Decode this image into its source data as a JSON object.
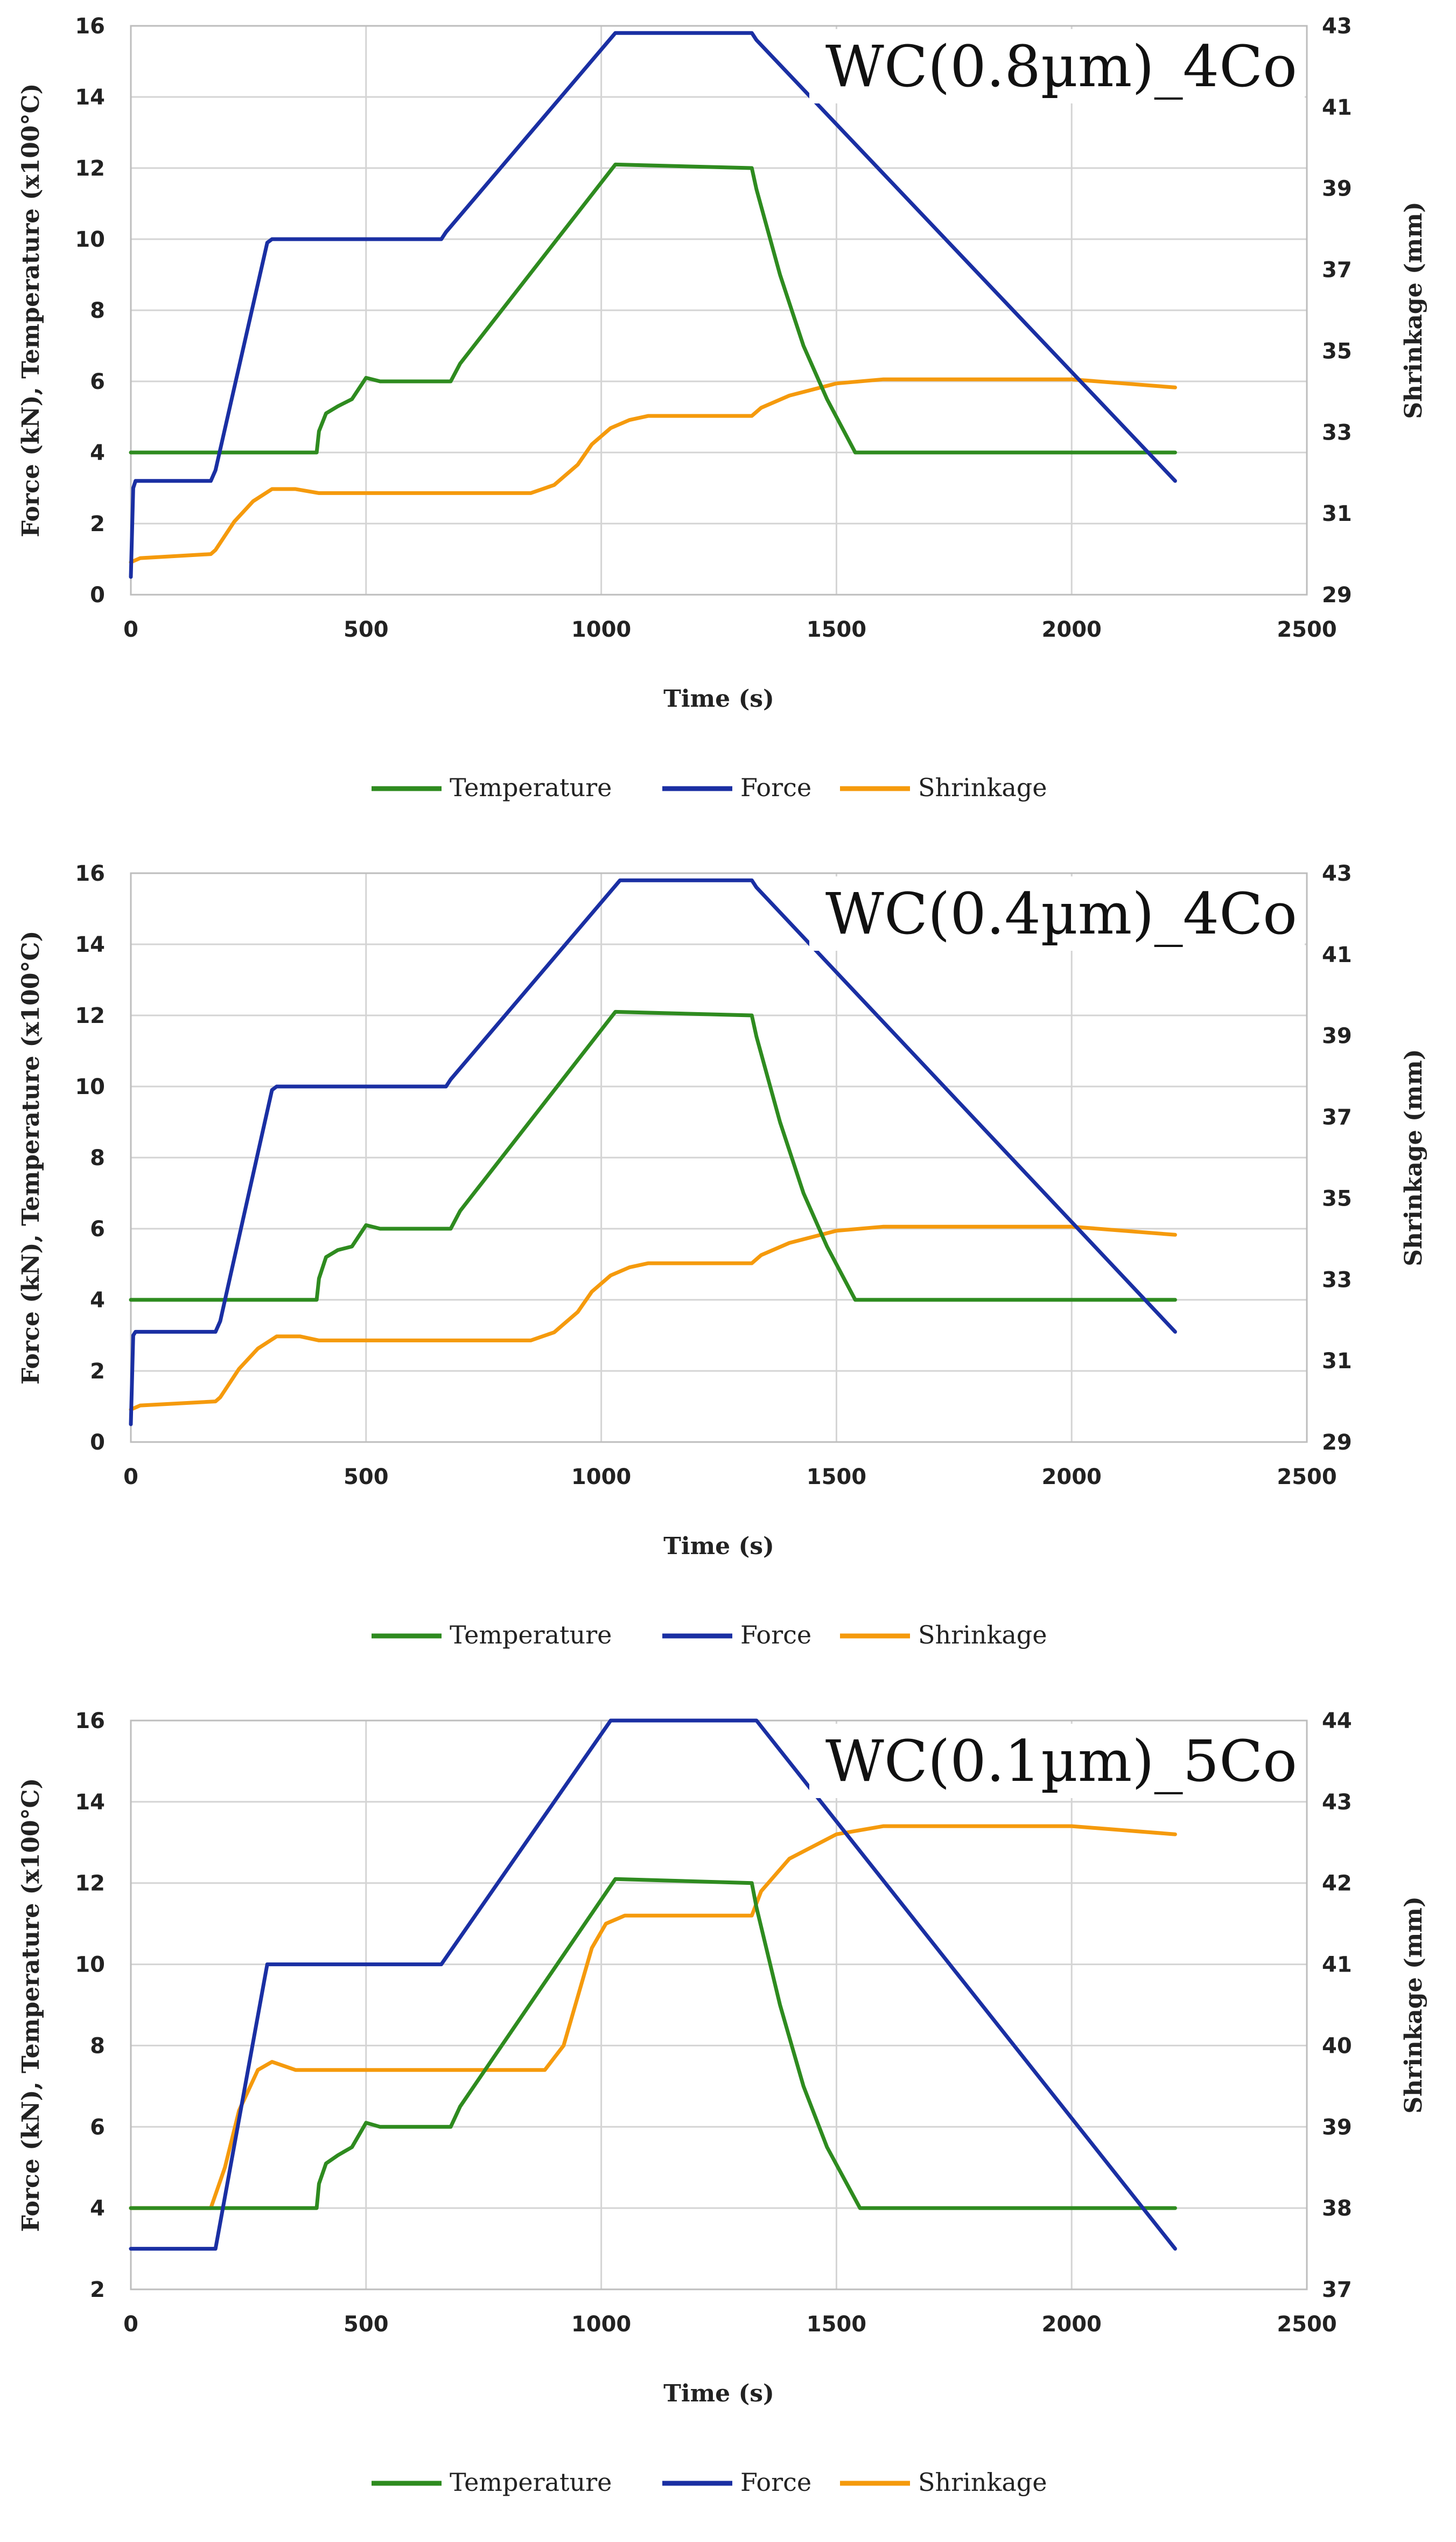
{
  "colors": {
    "temperature": "#2e8b1f",
    "force": "#1a2fa3",
    "shrinkage": "#f59a0c",
    "grid": "#d4d4d4"
  },
  "legend": [
    "Temperature",
    "Force",
    "Shrinkage"
  ],
  "chart_data": [
    {
      "type": "line",
      "title": "WC(0.8µm)_4Co",
      "xlabel": "Time (s)",
      "ylabel": "Force (kN), Temperature (x100°C)",
      "y2label": "Shrinkage (mm)",
      "xlim": [
        0,
        2500
      ],
      "xticks": [
        0,
        500,
        1000,
        1500,
        2000,
        2500
      ],
      "ylim": [
        0,
        16
      ],
      "yticks": [
        0,
        2,
        4,
        6,
        8,
        10,
        12,
        14,
        16
      ],
      "y2lim": [
        29,
        43
      ],
      "y2ticks": [
        29,
        31,
        33,
        35,
        37,
        39,
        41,
        43
      ],
      "grid": true,
      "legend_position": "bottom",
      "series": [
        {
          "name": "Temperature",
          "axis": "left",
          "x": [
            0,
            395,
            400,
            415,
            440,
            470,
            500,
            530,
            560,
            680,
            700,
            1030,
            1320,
            1330,
            1380,
            1430,
            1480,
            1540,
            2220
          ],
          "y": [
            4.0,
            4.0,
            4.6,
            5.1,
            5.3,
            5.5,
            6.1,
            6.0,
            6.0,
            6.0,
            6.5,
            12.1,
            12.0,
            11.4,
            9.0,
            7.0,
            5.5,
            4.0,
            4.0
          ]
        },
        {
          "name": "Force",
          "axis": "left",
          "x": [
            0,
            5,
            10,
            170,
            180,
            290,
            300,
            660,
            670,
            1030,
            1040,
            1320,
            1330,
            2220
          ],
          "y": [
            0.5,
            3.0,
            3.2,
            3.2,
            3.5,
            9.9,
            10.0,
            10.0,
            10.2,
            15.8,
            15.8,
            15.8,
            15.6,
            3.2
          ]
        },
        {
          "name": "Shrinkage",
          "axis": "right",
          "x": [
            0,
            20,
            170,
            180,
            220,
            260,
            300,
            350,
            400,
            600,
            850,
            900,
            950,
            980,
            1020,
            1060,
            1100,
            1320,
            1340,
            1400,
            1500,
            1600,
            2000,
            2220
          ],
          "y": [
            29.8,
            29.9,
            30.0,
            30.1,
            30.8,
            31.3,
            31.6,
            31.6,
            31.5,
            31.5,
            31.5,
            31.7,
            32.2,
            32.7,
            33.1,
            33.3,
            33.4,
            33.4,
            33.6,
            33.9,
            34.2,
            34.3,
            34.3,
            34.1
          ]
        }
      ]
    },
    {
      "type": "line",
      "title": "WC(0.4µm)_4Co",
      "xlabel": "Time (s)",
      "ylabel": "Force (kN), Temperature (x100°C)",
      "y2label": "Shrinkage (mm)",
      "xlim": [
        0,
        2500
      ],
      "xticks": [
        0,
        500,
        1000,
        1500,
        2000,
        2500
      ],
      "ylim": [
        0,
        16
      ],
      "yticks": [
        0,
        2,
        4,
        6,
        8,
        10,
        12,
        14,
        16
      ],
      "y2lim": [
        29,
        43
      ],
      "y2ticks": [
        29,
        31,
        33,
        35,
        37,
        39,
        41,
        43
      ],
      "grid": true,
      "legend_position": "bottom",
      "series": [
        {
          "name": "Temperature",
          "axis": "left",
          "x": [
            0,
            395,
            400,
            415,
            440,
            470,
            500,
            530,
            560,
            680,
            700,
            1030,
            1320,
            1330,
            1380,
            1430,
            1480,
            1540,
            2220
          ],
          "y": [
            4.0,
            4.0,
            4.6,
            5.2,
            5.4,
            5.5,
            6.1,
            6.0,
            6.0,
            6.0,
            6.5,
            12.1,
            12.0,
            11.4,
            9.0,
            7.0,
            5.5,
            4.0,
            4.0
          ]
        },
        {
          "name": "Force",
          "axis": "left",
          "x": [
            0,
            5,
            10,
            180,
            190,
            300,
            310,
            670,
            680,
            1040,
            1050,
            1320,
            1330,
            2220
          ],
          "y": [
            0.5,
            3.0,
            3.1,
            3.1,
            3.4,
            9.9,
            10.0,
            10.0,
            10.2,
            15.8,
            15.8,
            15.8,
            15.6,
            3.1
          ]
        },
        {
          "name": "Shrinkage",
          "axis": "right",
          "x": [
            0,
            20,
            180,
            190,
            230,
            270,
            310,
            360,
            400,
            600,
            850,
            900,
            950,
            980,
            1020,
            1060,
            1100,
            1320,
            1340,
            1400,
            1500,
            1600,
            2000,
            2220
          ],
          "y": [
            29.8,
            29.9,
            30.0,
            30.1,
            30.8,
            31.3,
            31.6,
            31.6,
            31.5,
            31.5,
            31.5,
            31.7,
            32.2,
            32.7,
            33.1,
            33.3,
            33.4,
            33.4,
            33.6,
            33.9,
            34.2,
            34.3,
            34.3,
            34.1
          ]
        }
      ]
    },
    {
      "type": "line",
      "title": "WC(0.1µm)_5Co",
      "xlabel": "Time (s)",
      "ylabel": "Force (kN), Temperature (x100°C)",
      "y2label": "Shrinkage (mm)",
      "xlim": [
        0,
        2500
      ],
      "xticks": [
        0,
        500,
        1000,
        1500,
        2000,
        2500
      ],
      "ylim": [
        2,
        16
      ],
      "yticks": [
        2,
        4,
        6,
        8,
        10,
        12,
        14,
        16
      ],
      "y2lim": [
        37,
        44
      ],
      "y2ticks": [
        37,
        38,
        39,
        40,
        41,
        42,
        43,
        44
      ],
      "grid": true,
      "legend_position": "bottom",
      "series": [
        {
          "name": "Temperature",
          "axis": "left",
          "x": [
            0,
            395,
            400,
            415,
            440,
            470,
            500,
            530,
            560,
            680,
            700,
            1030,
            1320,
            1330,
            1380,
            1430,
            1480,
            1550,
            2220
          ],
          "y": [
            4.0,
            4.0,
            4.6,
            5.1,
            5.3,
            5.5,
            6.1,
            6.0,
            6.0,
            6.0,
            6.5,
            12.1,
            12.0,
            11.4,
            9.0,
            7.0,
            5.5,
            4.0,
            4.0
          ]
        },
        {
          "name": "Force",
          "axis": "left",
          "x": [
            0,
            180,
            290,
            660,
            1020,
            1330,
            2220
          ],
          "y": [
            3.0,
            3.0,
            10.0,
            10.0,
            16.0,
            16.0,
            3.0
          ]
        },
        {
          "name": "Shrinkage",
          "axis": "right",
          "x": [
            0,
            170,
            200,
            230,
            270,
            300,
            350,
            400,
            600,
            850,
            880,
            920,
            950,
            980,
            1010,
            1050,
            1100,
            1320,
            1340,
            1400,
            1500,
            1600,
            2000,
            2220
          ],
          "y": [
            38.0,
            38.0,
            38.5,
            39.2,
            39.7,
            39.8,
            39.7,
            39.7,
            39.7,
            39.7,
            39.7,
            40.0,
            40.6,
            41.2,
            41.5,
            41.6,
            41.6,
            41.6,
            41.9,
            42.3,
            42.6,
            42.7,
            42.7,
            42.6
          ]
        }
      ]
    }
  ]
}
